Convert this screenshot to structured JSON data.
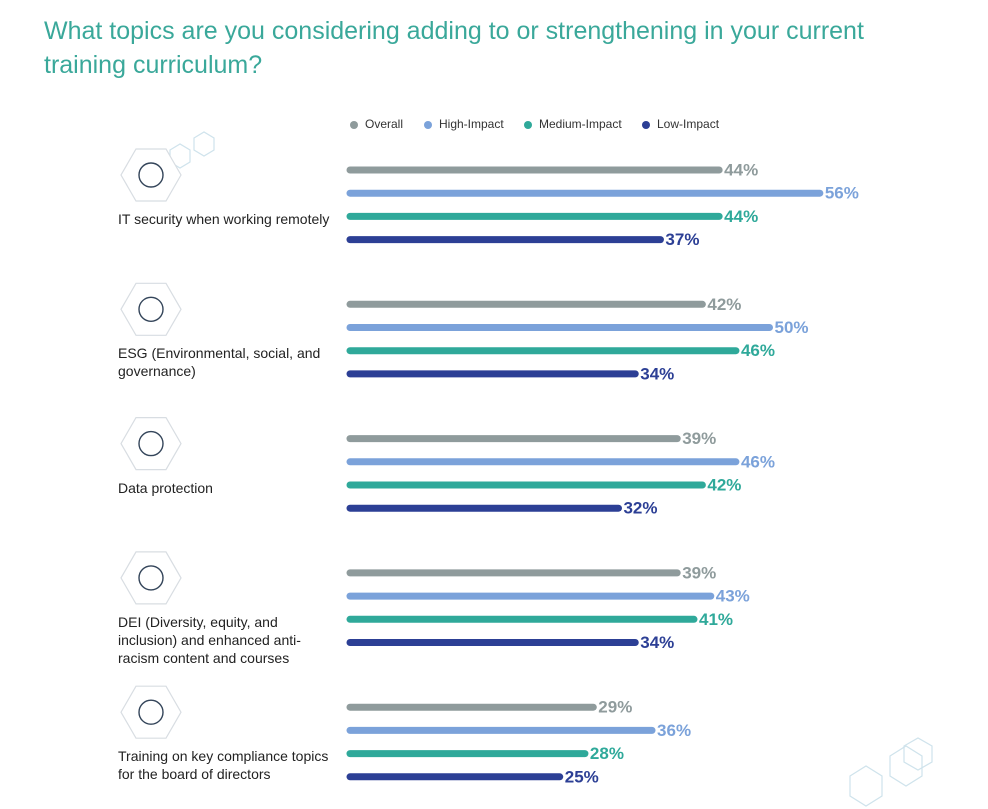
{
  "chart_data": {
    "type": "bar",
    "orientation": "horizontal",
    "title": "What topics are you considering adding to or strengthening in your current training curriculum?",
    "categories": [
      "IT security when working remotely",
      "ESG (Environmental, social, and governance)",
      "Data protection",
      "DEI (Diversity, equity, and inclusion) and enhanced anti-racism content and courses",
      "Training on key compliance topics for the board of directors"
    ],
    "series": [
      {
        "name": "Overall",
        "color": "#8f9b9c",
        "values": [
          44,
          42,
          39,
          39,
          29
        ],
        "value_labels": [
          "44%",
          "42%",
          "39%",
          "39%",
          "29%"
        ]
      },
      {
        "name": "High-Impact",
        "color": "#7ba2da",
        "values": [
          56,
          50,
          46,
          43,
          36
        ],
        "value_labels": [
          "56%",
          "50%",
          "46%",
          "43%",
          "36%"
        ]
      },
      {
        "name": "Medium-Impact",
        "color": "#2fa99a",
        "values": [
          44,
          46,
          42,
          41,
          28
        ],
        "value_labels": [
          "44%",
          "46%",
          "42%",
          "41%",
          "28%"
        ]
      },
      {
        "name": "Low-Impact",
        "color": "#2c3f95",
        "values": [
          37,
          34,
          32,
          34,
          25
        ],
        "value_labels": [
          "37%",
          "34%",
          "32%",
          "34%",
          "25%"
        ]
      }
    ],
    "legend": "top"
  }
}
